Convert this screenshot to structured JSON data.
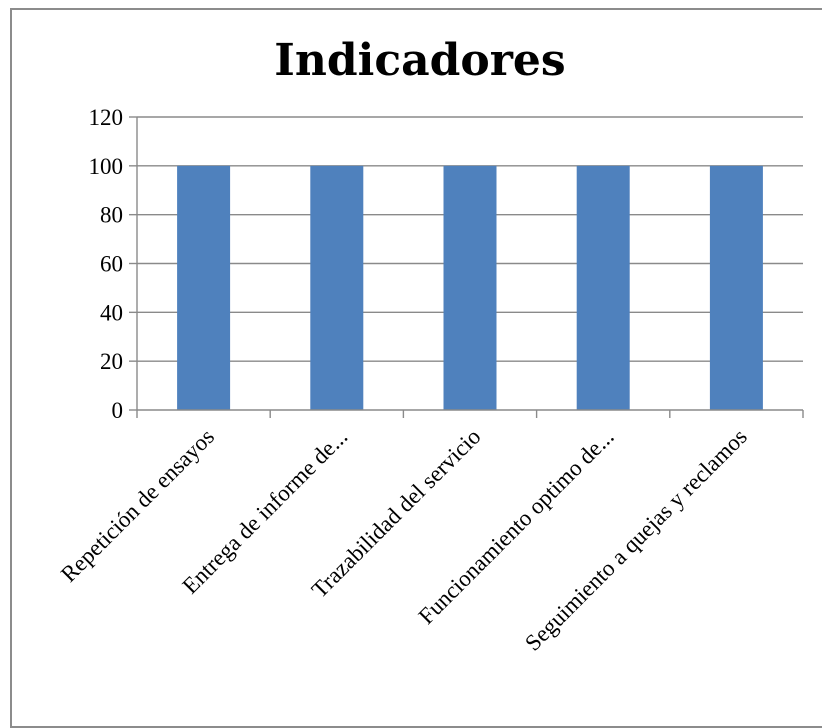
{
  "chart_data": {
    "type": "bar",
    "title": "Indicadores",
    "categories": [
      "Repetición de ensayos",
      "Entrega de informe de...",
      "Trazabilidad del servicio",
      "Funcionamiento optimo de...",
      "Seguimiento a quejas y reclamos"
    ],
    "values": [
      100,
      100,
      100,
      100,
      100
    ],
    "ylim": [
      0,
      120
    ],
    "yticks": [
      0,
      20,
      40,
      60,
      80,
      100,
      120
    ],
    "grid": true,
    "legend": "none",
    "bar_color": "#4f81bd"
  }
}
